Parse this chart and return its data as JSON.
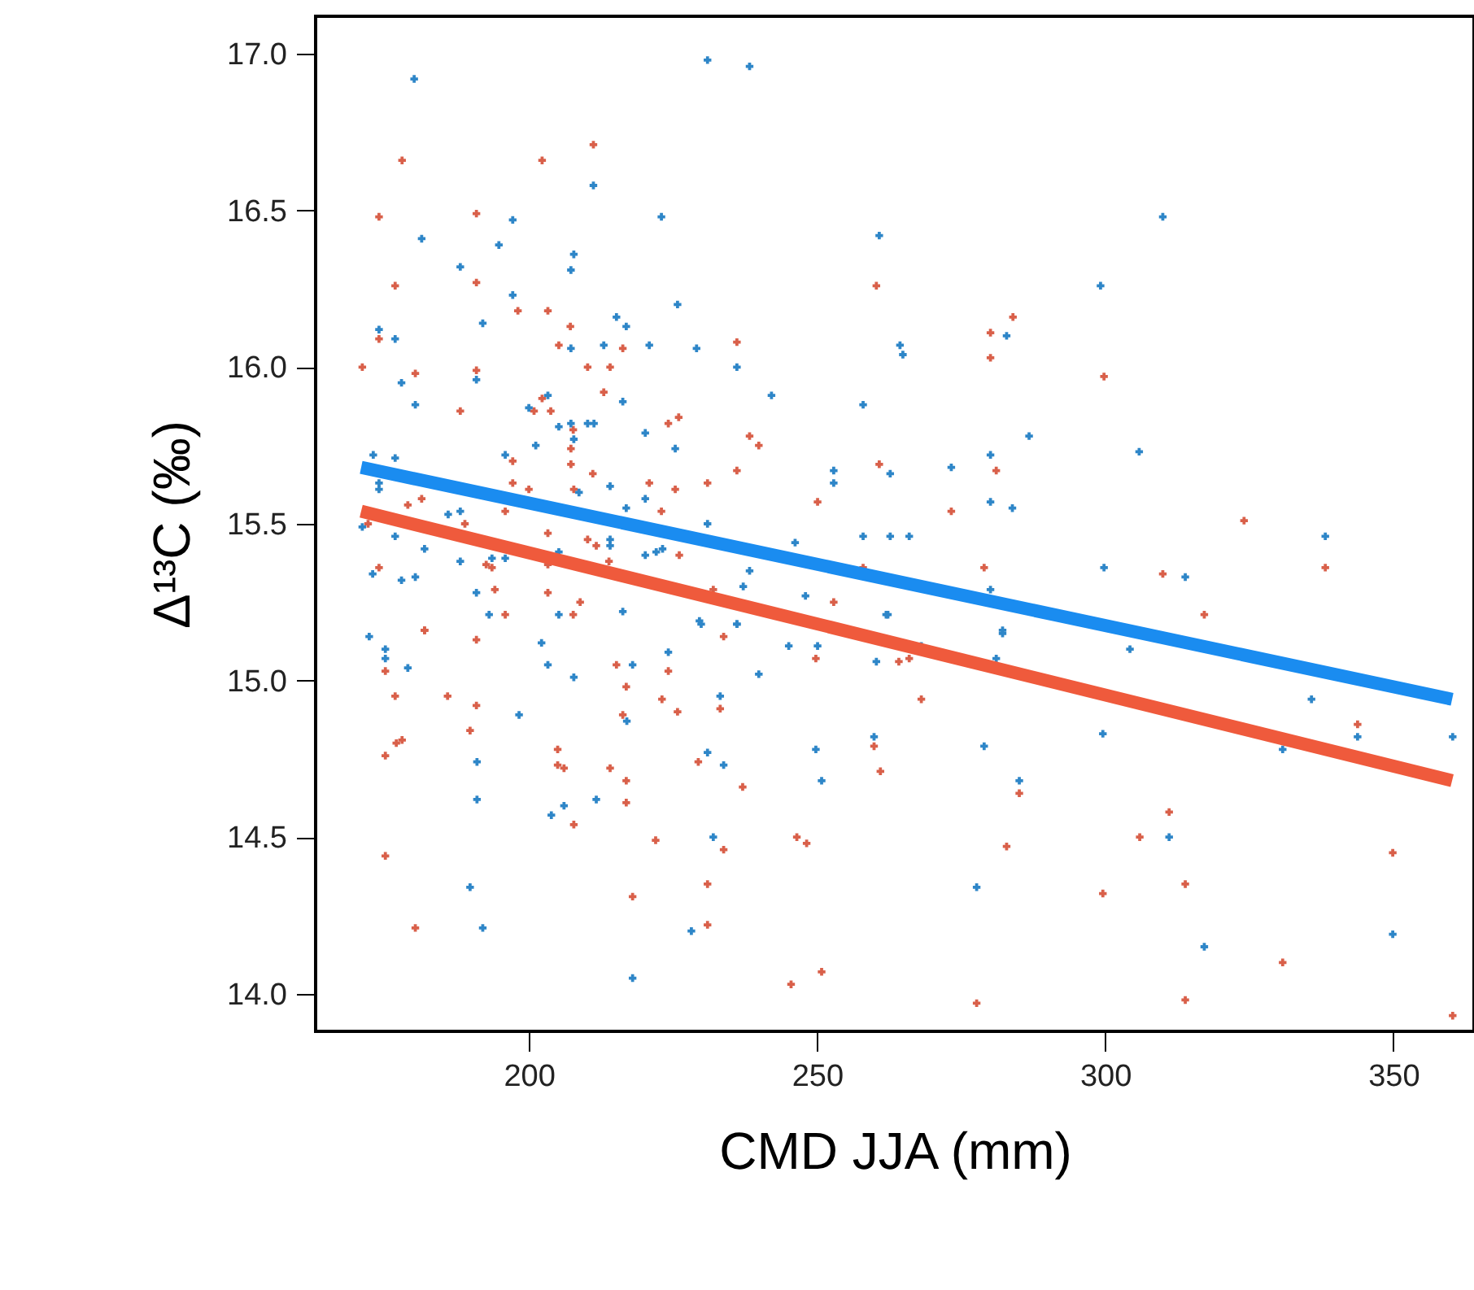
{
  "chart_data": {
    "type": "scatter",
    "xlabel": "CMD JJA (mm)",
    "ylabel": "Δ¹³C (‰)",
    "xlim": [
      163,
      364
    ],
    "ylim": [
      13.88,
      17.12
    ],
    "xticks": [
      200,
      250,
      300,
      350
    ],
    "yticks": [
      {
        "value": 14,
        "label": "14.0"
      },
      14.5,
      {
        "value": 15,
        "label": "15.0"
      },
      15.5,
      {
        "value": 16,
        "label": "16.0"
      },
      16.5,
      {
        "value": 17,
        "label": "17.0"
      }
    ],
    "grid": false,
    "marker": "cross",
    "series": [
      {
        "color": "#d9604a",
        "x": [
          178.0,
          202.3,
          211.2,
          174.0,
          190.9,
          176.8,
          190.9,
          198.1,
          203.3,
          207.2,
          174.0,
          171.1,
          180.3,
          190.9,
          205.2,
          210.2,
          214.1,
          216.3,
          236.1,
          260.3,
          213.0,
          202.3,
          188.1,
          200.9,
          203.8,
          224.2,
          226.0,
          207.7,
          207.3,
          207.3,
          197.2,
          238.3,
          239.9,
          260.8,
          211.1,
          197.2,
          200.0,
          207.8,
          220.9,
          225.4,
          231.0,
          236.1,
          250.1,
          179.0,
          181.4,
          195.9,
          223.0,
          172.1,
          188.9,
          203.3,
          210.2,
          211.7,
          213.9,
          226.1,
          174.0,
          192.6,
          193.6,
          203.3,
          194.1,
          203.3,
          208.9,
          207.7,
          195.9,
          181.9,
          232.0,
          252.9,
          258.0,
          284.0,
          280.1,
          280.1,
          299.8,
          281.1,
          273.3,
          324.1,
          338.2,
          279.0,
          310.0,
          317.2,
          181.9,
          190.9,
          175.1,
          176.8,
          185.9,
          190.9,
          215.2,
          216.9,
          216.3,
          224.2,
          223.1,
          225.8,
          233.2,
          233.8,
          249.8,
          189.8,
          177.0,
          178.0,
          175.1,
          205.0,
          205.0,
          206.1,
          214.1,
          216.9,
          216.9,
          207.8,
          229.4,
          237.1,
          259.9,
          261.0,
          222.0,
          233.8,
          246.5,
          248.2,
          231.0,
          218.0,
          175.1,
          180.3,
          231.0,
          250.8,
          245.5,
          264.2,
          266.0,
          268.1,
          343.8,
          285.1,
          311.1,
          306.0,
          282.9,
          349.9,
          299.6,
          313.9,
          330.8,
          277.7,
          313.9,
          360.3
        ],
        "values": [
          16.66,
          16.66,
          16.71,
          16.48,
          16.49,
          16.26,
          16.27,
          16.18,
          16.18,
          16.13,
          16.09,
          16.0,
          15.98,
          15.99,
          16.07,
          16.0,
          16.0,
          16.06,
          16.08,
          16.26,
          15.92,
          15.9,
          15.86,
          15.86,
          15.86,
          15.82,
          15.84,
          15.8,
          15.74,
          15.69,
          15.7,
          15.78,
          15.75,
          15.69,
          15.66,
          15.63,
          15.61,
          15.61,
          15.63,
          15.61,
          15.63,
          15.67,
          15.57,
          15.56,
          15.58,
          15.54,
          15.54,
          15.5,
          15.5,
          15.47,
          15.45,
          15.43,
          15.38,
          15.4,
          15.36,
          15.37,
          15.36,
          15.37,
          15.29,
          15.28,
          15.25,
          15.21,
          15.21,
          15.16,
          15.29,
          15.25,
          15.36,
          16.16,
          16.11,
          16.03,
          15.97,
          15.67,
          15.54,
          15.51,
          15.36,
          15.36,
          15.34,
          15.21,
          15.16,
          15.13,
          15.03,
          14.95,
          14.95,
          14.92,
          15.05,
          14.98,
          14.89,
          15.03,
          14.94,
          14.9,
          14.91,
          15.14,
          15.07,
          14.84,
          14.8,
          14.81,
          14.76,
          14.78,
          14.73,
          14.72,
          14.72,
          14.68,
          14.61,
          14.54,
          14.74,
          14.66,
          14.79,
          14.71,
          14.49,
          14.46,
          14.5,
          14.48,
          14.35,
          14.31,
          14.44,
          14.21,
          14.22,
          14.07,
          14.03,
          15.06,
          15.07,
          14.94,
          14.86,
          14.64,
          14.58,
          14.5,
          14.47,
          14.45,
          14.32,
          14.35,
          14.1,
          13.97,
          13.98,
          13.93
        ]
      },
      {
        "color": "#2e86c8",
        "x": [
          180.1,
          231.0,
          238.3,
          211.2,
          197.2,
          223.0,
          181.4,
          194.8,
          207.8,
          188.1,
          207.3,
          260.8,
          197.2,
          225.8,
          192.0,
          215.2,
          216.9,
          174.0,
          176.8,
          207.3,
          213.0,
          220.9,
          229.1,
          236.1,
          177.9,
          190.9,
          180.3,
          203.3,
          200.0,
          216.3,
          242.1,
          258.0,
          205.2,
          207.3,
          210.2,
          211.3,
          207.8,
          201.2,
          220.2,
          225.4,
          195.9,
          173.0,
          176.8,
          252.9,
          252.9,
          262.7,
          174.0,
          174.0,
          214.1,
          208.7,
          220.2,
          216.9,
          186.0,
          188.1,
          231.0,
          171.1,
          176.8,
          214.1,
          214.1,
          181.9,
          205.2,
          220.2,
          222.1,
          223.2,
          246.2,
          262.7,
          188.1,
          193.6,
          195.9,
          172.9,
          177.9,
          180.3,
          238.3,
          237.2,
          190.9,
          248.0,
          193.1,
          205.2,
          216.3,
          229.6,
          236.1,
          262.3,
          258.0,
          310.0,
          299.2,
          282.9,
          264.4,
          264.9,
          286.8,
          280.1,
          273.3,
          305.9,
          280.1,
          283.9,
          266.0,
          338.2,
          299.8,
          313.9,
          280.1,
          262.0,
          282.2,
          172.3,
          175.1,
          175.1,
          179.0,
          202.2,
          203.3,
          207.8,
          218.0,
          224.2,
          229.9,
          236.1,
          245.1,
          250.1,
          239.9,
          233.2,
          260.3,
          217.0,
          198.3,
          191.0,
          191.0,
          203.9,
          206.1,
          211.7,
          231.0,
          233.8,
          249.8,
          250.8,
          259.9,
          232.0,
          189.8,
          192.0,
          228.2,
          218.0,
          282.2,
          268.1,
          281.1,
          304.3,
          335.8,
          343.8,
          360.3,
          299.6,
          279.0,
          285.1,
          330.8,
          311.1,
          277.7,
          317.2,
          349.9
        ],
        "values": [
          16.92,
          16.98,
          16.96,
          16.58,
          16.47,
          16.48,
          16.41,
          16.39,
          16.36,
          16.32,
          16.31,
          16.42,
          16.23,
          16.2,
          16.14,
          16.16,
          16.13,
          16.12,
          16.09,
          16.06,
          16.07,
          16.07,
          16.06,
          16.0,
          15.95,
          15.96,
          15.88,
          15.91,
          15.87,
          15.89,
          15.91,
          15.88,
          15.81,
          15.82,
          15.82,
          15.82,
          15.77,
          15.75,
          15.79,
          15.74,
          15.72,
          15.72,
          15.71,
          15.67,
          15.63,
          15.66,
          15.63,
          15.61,
          15.62,
          15.6,
          15.58,
          15.55,
          15.53,
          15.54,
          15.5,
          15.49,
          15.46,
          15.45,
          15.43,
          15.42,
          15.41,
          15.4,
          15.41,
          15.42,
          15.44,
          15.46,
          15.38,
          15.39,
          15.39,
          15.34,
          15.32,
          15.33,
          15.35,
          15.3,
          15.28,
          15.27,
          15.21,
          15.21,
          15.22,
          15.19,
          15.18,
          15.21,
          15.46,
          16.48,
          16.26,
          16.1,
          16.07,
          16.04,
          15.78,
          15.72,
          15.68,
          15.73,
          15.57,
          15.55,
          15.46,
          15.46,
          15.36,
          15.33,
          15.29,
          15.21,
          15.16,
          15.14,
          15.1,
          15.07,
          15.04,
          15.12,
          15.05,
          15.01,
          15.05,
          15.09,
          15.18,
          15.18,
          15.11,
          15.11,
          15.02,
          14.95,
          15.06,
          14.87,
          14.89,
          14.74,
          14.62,
          14.57,
          14.6,
          14.62,
          14.77,
          14.73,
          14.78,
          14.68,
          14.82,
          14.5,
          14.34,
          14.21,
          14.2,
          14.05,
          15.15,
          15.11,
          15.07,
          15.1,
          14.94,
          14.82,
          14.82,
          14.83,
          14.79,
          14.68,
          14.78,
          14.5,
          14.34,
          14.15,
          14.19
        ]
      },
      {
        "type": "line",
        "color": "#ef5a3c",
        "marker": "none",
        "line_style": "solid",
        "x": [
          170.9,
          360.2
        ],
        "values": [
          15.54,
          14.68
        ]
      },
      {
        "type": "line",
        "color": "#1a8cf0",
        "marker": "none",
        "line_style": "solid",
        "x": [
          170.9,
          360.2
        ],
        "values": [
          15.68,
          14.94
        ]
      }
    ]
  }
}
